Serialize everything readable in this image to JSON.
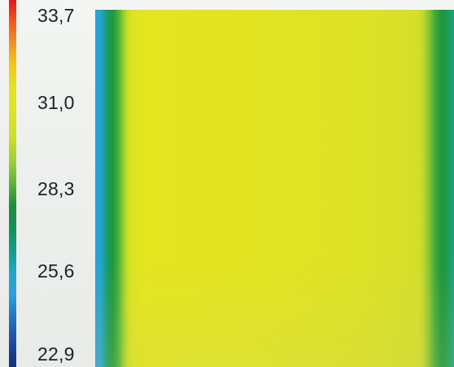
{
  "colorbar": {
    "ticks": [
      "33,7",
      "31,0",
      "28,3",
      "25,6",
      "22,9"
    ]
  },
  "field": {
    "description_colors": {
      "hot": "#e8141b",
      "mid": "#e2e421",
      "cool_green": "#1f8e3a",
      "cold": "#15307a"
    }
  }
}
